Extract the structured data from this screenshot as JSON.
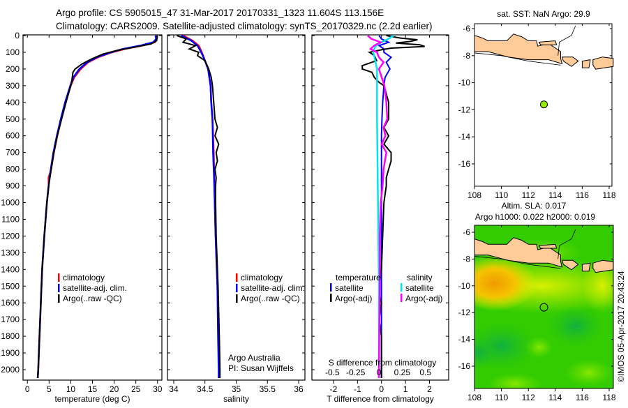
{
  "header": {
    "line1": "Argo profile: CS 5905015_47 31-Mar-2017 20170331_1323 11.604S 113.156E",
    "line2": "Climatology: CARS2009. Satellite-adjusted climatology: synTS_20170329.nc (2.2d earlier)"
  },
  "credit": "©IMOS 05-Apr-2017 20:43:24",
  "colors": {
    "climatology": "#ff0000",
    "satellite": "#0000ff",
    "argo": "#000000",
    "sal_satellite": "#00e5ee",
    "sal_argo": "#ff00ff",
    "land": "#ffcc99",
    "float_dot": "#99ee00"
  },
  "chart_data": [
    {
      "type": "line",
      "id": "temperature",
      "xlabel": "temperature (deg C)",
      "ylabel": "depth",
      "xlim": [
        -1,
        31
      ],
      "ylim": [
        2060,
        0
      ],
      "xticks": [
        0,
        5,
        10,
        15,
        20,
        25,
        30
      ],
      "yticks": [
        0,
        100,
        200,
        300,
        400,
        500,
        600,
        700,
        800,
        900,
        1000,
        1100,
        1200,
        1300,
        1400,
        1500,
        1600,
        1700,
        1800,
        1900,
        2000
      ],
      "legend": [
        "climatology",
        "satellite-adj. clim.",
        "Argo(..raw -QC)"
      ],
      "series": [
        {
          "name": "climatology",
          "color": "#ff0000",
          "depth": [
            0,
            20,
            40,
            60,
            80,
            100,
            130,
            160,
            200,
            250,
            300,
            400,
            500,
            600,
            700,
            800,
            850,
            900,
            1000,
            1200,
            1400,
            1600,
            1800,
            2000,
            2050
          ],
          "values": [
            29.6,
            29.8,
            29.4,
            26.5,
            22.5,
            19.5,
            16.3,
            14.0,
            12.3,
            10.8,
            10.0,
            8.8,
            7.8,
            6.9,
            6.1,
            5.5,
            4.9,
            4.9,
            4.5,
            3.9,
            3.4,
            3.1,
            2.8,
            2.5,
            2.4
          ]
        },
        {
          "name": "satellite-adj. clim.",
          "color": "#0000ff",
          "depth": [
            0,
            20,
            40,
            60,
            80,
            100,
            130,
            160,
            200,
            250,
            300,
            400,
            500,
            600,
            700,
            800,
            900,
            1000,
            1200,
            1400,
            1600,
            1800,
            2000,
            2050
          ],
          "values": [
            29.5,
            29.7,
            29.0,
            26.0,
            22.0,
            19.3,
            16.0,
            13.8,
            12.0,
            10.6,
            9.9,
            8.7,
            7.7,
            6.8,
            6.0,
            5.4,
            4.9,
            4.5,
            3.9,
            3.4,
            3.1,
            2.8,
            2.5,
            2.4
          ]
        },
        {
          "name": "Argo(..raw -QC)",
          "color": "#000000",
          "depth": [
            0,
            10,
            30,
            50,
            70,
            90,
            110,
            140,
            170,
            200,
            220,
            260,
            300,
            400,
            500,
            600,
            700,
            800,
            900,
            1000,
            1200,
            1400,
            1600,
            1800,
            2000,
            2050
          ],
          "values": [
            29.9,
            29.9,
            29.8,
            28.5,
            24.5,
            20.5,
            17.5,
            14.8,
            12.6,
            11.0,
            10.5,
            10.3,
            10.0,
            8.9,
            7.9,
            6.9,
            6.1,
            5.5,
            4.9,
            4.5,
            3.9,
            3.4,
            3.1,
            2.8,
            2.5,
            2.4
          ]
        }
      ]
    },
    {
      "type": "line",
      "id": "salinity",
      "xlabel": "salinity",
      "xlim": [
        33.9,
        36.1
      ],
      "ylim": [
        2060,
        0
      ],
      "xticks": [
        34,
        34.5,
        35,
        35.5,
        36
      ],
      "legend": [
        "climatology",
        "satellite-adj. clim.",
        "Argo(..raw -QC)"
      ],
      "annotation": [
        "Argo Australia",
        "PI: Susan Wijffels"
      ],
      "series": [
        {
          "name": "climatology",
          "color": "#ff0000",
          "depth": [
            0,
            30,
            60,
            100,
            150,
            200,
            300,
            400,
            500,
            700,
            900,
            1200,
            1500,
            1800,
            2000,
            2050
          ],
          "values": [
            34.15,
            34.3,
            34.4,
            34.45,
            34.5,
            34.55,
            34.59,
            34.6,
            34.62,
            34.64,
            34.65,
            34.67,
            34.7,
            34.72,
            34.73,
            34.73
          ]
        },
        {
          "name": "satellite-adj. clim.",
          "color": "#0000ff",
          "depth": [
            0,
            30,
            60,
            100,
            150,
            200,
            300,
            400,
            500,
            700,
            900,
            1200,
            1500,
            1800,
            2000,
            2050
          ],
          "values": [
            34.12,
            34.28,
            34.38,
            34.44,
            34.5,
            34.55,
            34.59,
            34.6,
            34.62,
            34.63,
            34.65,
            34.67,
            34.7,
            34.71,
            34.72,
            34.72
          ]
        },
        {
          "name": "Argo(..raw -QC)",
          "color": "#000000",
          "depth": [
            0,
            20,
            40,
            60,
            80,
            100,
            120,
            150,
            200,
            250,
            300,
            400,
            500,
            550,
            600,
            650,
            700,
            750,
            800,
            850,
            900,
            1000,
            1200,
            1500,
            1800,
            2000,
            2050
          ],
          "values": [
            34.05,
            34.2,
            34.15,
            34.35,
            34.25,
            34.4,
            34.38,
            34.5,
            34.56,
            34.6,
            34.62,
            34.64,
            34.66,
            34.7,
            34.66,
            34.72,
            34.68,
            34.7,
            34.66,
            34.68,
            34.67,
            34.67,
            34.68,
            34.71,
            34.73,
            34.74,
            34.74
          ]
        }
      ]
    },
    {
      "type": "line",
      "id": "difference",
      "xlabel": "T difference from climatology",
      "x2label": "S difference from climatology",
      "xlim": [
        -2.9,
        2.8
      ],
      "x2lim": [
        -0.72,
        0.75
      ],
      "ylim": [
        2060,
        0
      ],
      "xticks": [
        -2,
        -1,
        0,
        1,
        2
      ],
      "x2ticks": [
        "-0.5",
        "-0.25",
        "0",
        "0.25",
        "0.5"
      ],
      "x2tick_values": [
        -0.5,
        -0.25,
        0,
        0.25,
        0.5
      ],
      "legend_temperature": {
        "title": "temperature",
        "items": [
          "satellite",
          "Argo(-adj)"
        ]
      },
      "legend_salinity": {
        "title": "salinity",
        "items": [
          "satellite",
          "Argo(-adj)"
        ]
      },
      "series": [
        {
          "name": "T satellite",
          "axis": "T",
          "color": "#0000ff",
          "depth": [
            0,
            20,
            40,
            60,
            80,
            100,
            130,
            160,
            200,
            250,
            300,
            400,
            500,
            600,
            800,
            1000,
            1500,
            2050
          ],
          "values": [
            -0.1,
            0.0,
            0.3,
            -0.1,
            0.1,
            0.1,
            0.4,
            0.2,
            0.35,
            0.15,
            0.1,
            0.05,
            0.02,
            0.0,
            0.0,
            0.0,
            0.0,
            0.0
          ]
        },
        {
          "name": "T Argo(-adj)",
          "axis": "T",
          "color": "#000000",
          "depth": [
            0,
            15,
            25,
            35,
            45,
            55,
            65,
            75,
            85,
            100,
            120,
            150,
            180,
            200,
            220,
            250,
            280,
            300,
            400,
            500,
            550,
            600,
            650,
            700,
            750,
            800,
            850,
            900,
            1000,
            1200,
            1400,
            1500,
            1550,
            1600,
            1700,
            1800,
            2000,
            2050
          ],
          "values": [
            0.2,
            0.8,
            1.5,
            1.2,
            0.6,
            1.6,
            1.8,
            0.4,
            0.0,
            -0.5,
            -0.3,
            -0.2,
            -0.8,
            -0.8,
            -0.4,
            -0.3,
            -0.1,
            0.1,
            0.3,
            0.3,
            0.1,
            0.3,
            0.1,
            0.4,
            0.4,
            0.3,
            0.2,
            0.2,
            0.1,
            0.05,
            0.0,
            -0.1,
            -0.1,
            0.0,
            -0.1,
            0.0,
            0.0,
            0.0
          ]
        },
        {
          "name": "S satellite",
          "axis": "S",
          "color": "#00e5ee",
          "depth": [
            0,
            20,
            40,
            60,
            80,
            100,
            150,
            200,
            300,
            500,
            1000,
            1500,
            2050
          ],
          "values": [
            0.16,
            0.1,
            0.03,
            -0.03,
            -0.05,
            -0.06,
            -0.04,
            -0.02,
            -0.02,
            -0.02,
            -0.01,
            0.0,
            0.0
          ]
        },
        {
          "name": "S Argo(-adj)",
          "axis": "S",
          "color": "#ff00ff",
          "depth": [
            0,
            20,
            40,
            60,
            80,
            100,
            130,
            160,
            200,
            300,
            400,
            500,
            550,
            600,
            650,
            700,
            800,
            900,
            1000,
            1200,
            1500,
            2000,
            2050
          ],
          "values": [
            -0.12,
            -0.08,
            0.02,
            -0.05,
            -0.09,
            -0.02,
            0.0,
            0.05,
            0.0,
            0.06,
            0.08,
            0.09,
            0.05,
            0.07,
            0.03,
            0.08,
            0.05,
            0.04,
            0.02,
            0.01,
            0.01,
            0.0,
            0.0
          ]
        }
      ]
    },
    {
      "type": "scatter",
      "id": "sst-map",
      "title": "sat. SST: NaN Argo: 29.9",
      "xlim": [
        108,
        118.3
      ],
      "ylim": [
        -17.6,
        -5.7
      ],
      "xticks": [
        108,
        110,
        112,
        114,
        116,
        118
      ],
      "yticks": [
        -6,
        -8,
        -10,
        -12,
        -14,
        -16
      ],
      "points": [
        {
          "lon": 113.156,
          "lat": -11.604
        }
      ]
    },
    {
      "type": "heatmap",
      "id": "sla-map",
      "title_line1": "Altim. SLA: 0.017",
      "title_line2": "Argo h1000: 0.022 h2000: 0.019",
      "xlim": [
        108,
        118.3
      ],
      "ylim": [
        -17.6,
        -5.7
      ],
      "xticks": [
        108,
        110,
        112,
        114,
        116,
        118
      ],
      "yticks": [
        -6,
        -8,
        -10,
        -12,
        -14,
        -16
      ],
      "points": [
        {
          "lon": 113.156,
          "lat": -11.604
        }
      ]
    }
  ]
}
